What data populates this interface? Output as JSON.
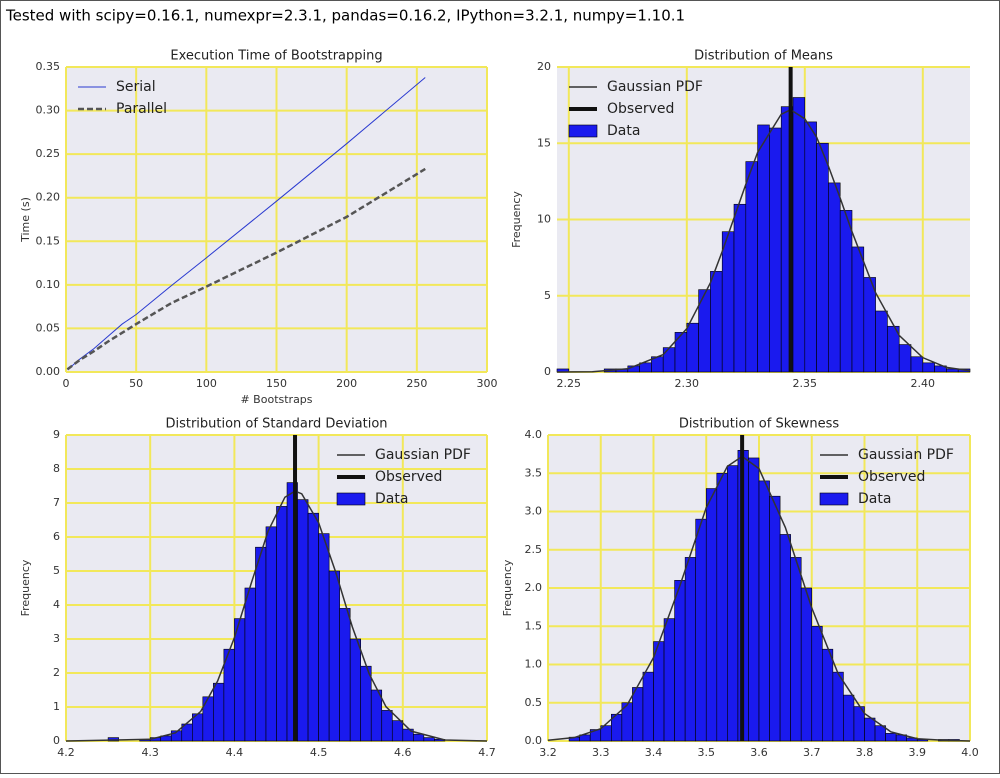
{
  "header": {
    "title": "Tested with scipy=0.16.1, numexpr=2.3.1, pandas=0.16.2, IPython=3.2.1, numpy=1.10.1"
  },
  "chart_data": [
    {
      "type": "line",
      "title": "Execution Time of Bootstrapping",
      "xlabel": "# Bootstraps",
      "ylabel": "Time (s)",
      "xlim": [
        0,
        300
      ],
      "xticks": [
        0,
        50,
        100,
        150,
        200,
        250,
        300
      ],
      "ylim": [
        0,
        0.35
      ],
      "yticks": [
        {
          "value": 0,
          "label": "0.00"
        },
        0.05,
        {
          "value": 0.1,
          "label": "0.10"
        },
        0.15,
        {
          "value": 0.2,
          "label": "0.20"
        },
        0.25,
        {
          "value": 0.3,
          "label": "0.30"
        },
        0.35
      ],
      "grid": true,
      "legend": "upper left",
      "x": [
        1,
        5,
        10,
        20,
        30,
        40,
        50,
        75,
        100,
        150,
        200,
        256
      ],
      "series": [
        {
          "name": "Serial",
          "color": "#2a3ad0",
          "width": 1,
          "dash": false,
          "values": [
            0.003,
            0.008,
            0.015,
            0.027,
            0.041,
            0.055,
            0.066,
            0.099,
            0.131,
            0.196,
            0.262,
            0.338
          ]
        },
        {
          "name": "Parallel",
          "color": "#555555",
          "width": 2.5,
          "dash": true,
          "values": [
            0.003,
            0.008,
            0.014,
            0.024,
            0.035,
            0.045,
            0.055,
            0.079,
            0.098,
            0.137,
            0.178,
            0.233
          ]
        }
      ]
    },
    {
      "type": "histogram",
      "title": "Distribution of Means",
      "ylabel": "Frequency",
      "xlim": [
        2.245,
        2.42
      ],
      "xticks": [
        2.25,
        {
          "value": 2.3,
          "label": "2.30"
        },
        2.35,
        {
          "value": 2.4,
          "label": "2.40"
        }
      ],
      "ylim": [
        0,
        20
      ],
      "yticks": [
        0,
        5,
        10,
        15,
        20
      ],
      "grid": true,
      "legend": "upper left",
      "series": [
        {
          "name": "Gaussian PDF",
          "kind": "line",
          "color": "#333333",
          "x": [
            2.245,
            2.26,
            2.275,
            2.29,
            2.3,
            2.31,
            2.315,
            2.32,
            2.325,
            2.33,
            2.34,
            2.344,
            2.35,
            2.355,
            2.36,
            2.365,
            2.37,
            2.38,
            2.39,
            2.4,
            2.41,
            2.42
          ],
          "values": [
            0,
            0.02,
            0.21,
            1.14,
            2.84,
            5.85,
            7.9,
            10.1,
            12.3,
            14.4,
            16.9,
            17.2,
            16.6,
            15.4,
            13.5,
            11.4,
            9.2,
            5.2,
            2.4,
            0.94,
            0.3,
            0.08
          ]
        },
        {
          "name": "Observed",
          "kind": "vline",
          "color": "#111111",
          "value": 2.344
        },
        {
          "name": "Data",
          "kind": "bar",
          "color": "#1a1aee",
          "bins": [
            2.245,
            2.25,
            2.255,
            2.26,
            2.265,
            2.27,
            2.275,
            2.28,
            2.285,
            2.29,
            2.295,
            2.3,
            2.305,
            2.31,
            2.315,
            2.32,
            2.325,
            2.33,
            2.335,
            2.34,
            2.345,
            2.35,
            2.355,
            2.36,
            2.365,
            2.37,
            2.375,
            2.38,
            2.385,
            2.39,
            2.395,
            2.4,
            2.405,
            2.41,
            2.415,
            2.42
          ],
          "values": [
            0.2,
            0,
            0,
            0,
            0.2,
            0.2,
            0.4,
            0.6,
            1.0,
            1.6,
            2.6,
            3.2,
            5.4,
            6.6,
            9.2,
            11.0,
            13.8,
            16.2,
            16.0,
            17.4,
            18.0,
            16.4,
            15.0,
            12.4,
            10.6,
            8.2,
            6.2,
            4.0,
            3.0,
            1.8,
            1.0,
            0.6,
            0.4,
            0.2,
            0.2
          ]
        }
      ]
    },
    {
      "type": "histogram",
      "title": "Distribution of Standard Deviation",
      "ylabel": "Frequency",
      "xlim": [
        4.2,
        4.7
      ],
      "xticks": [
        4.2,
        4.3,
        4.4,
        4.5,
        4.6,
        4.7
      ],
      "ylim": [
        0,
        9
      ],
      "yticks": [
        0,
        1,
        2,
        3,
        4,
        5,
        6,
        7,
        8,
        9
      ],
      "grid": true,
      "legend": "upper right",
      "series": [
        {
          "name": "Gaussian PDF",
          "kind": "line",
          "color": "#333333",
          "x": [
            4.2,
            4.3,
            4.33,
            4.36,
            4.38,
            4.4,
            4.42,
            4.44,
            4.46,
            4.472,
            4.48,
            4.5,
            4.52,
            4.54,
            4.56,
            4.58,
            4.61,
            4.65,
            4.7
          ],
          "values": [
            0,
            0.05,
            0.24,
            0.87,
            1.76,
            3.04,
            4.64,
            6.17,
            7.17,
            7.35,
            7.27,
            6.42,
            4.99,
            3.36,
            1.98,
            1.01,
            0.29,
            0.03,
            0
          ]
        },
        {
          "name": "Observed",
          "kind": "vline",
          "color": "#111111",
          "value": 4.472
        },
        {
          "name": "Data",
          "kind": "bar",
          "color": "#1a1aee",
          "bins": [
            4.25,
            4.2625,
            4.275,
            4.2875,
            4.3,
            4.3125,
            4.325,
            4.3375,
            4.35,
            4.3625,
            4.375,
            4.3875,
            4.4,
            4.4125,
            4.425,
            4.4375,
            4.45,
            4.4625,
            4.475,
            4.4875,
            4.5,
            4.5125,
            4.525,
            4.5375,
            4.55,
            4.5625,
            4.575,
            4.5875,
            4.6,
            4.6125,
            4.625,
            4.6375,
            4.65
          ],
          "values": [
            0.1,
            0,
            0,
            0.05,
            0.1,
            0.15,
            0.3,
            0.5,
            0.8,
            1.3,
            1.7,
            2.7,
            3.6,
            4.5,
            5.7,
            6.3,
            6.9,
            7.6,
            7.1,
            6.7,
            6.1,
            5.0,
            3.9,
            3.0,
            2.2,
            1.5,
            0.9,
            0.6,
            0.35,
            0.2,
            0.1,
            0.05
          ]
        }
      ]
    },
    {
      "type": "histogram",
      "title": "Distribution of Skewness",
      "ylabel": "Frequency",
      "xlim": [
        3.2,
        4.0
      ],
      "xticks": [
        3.2,
        3.3,
        3.4,
        3.5,
        3.6,
        3.7,
        3.8,
        3.9,
        {
          "value": 4,
          "label": "4.0"
        }
      ],
      "ylim": [
        0,
        4
      ],
      "yticks": [
        {
          "value": 0,
          "label": "0.0"
        },
        0.5,
        {
          "value": 1,
          "label": "1.0"
        },
        1.5,
        {
          "value": 2,
          "label": "2.0"
        },
        2.5,
        {
          "value": 3,
          "label": "3.0"
        },
        3.5,
        {
          "value": 4,
          "label": "4.0"
        }
      ],
      "grid": true,
      "legend": "upper right",
      "series": [
        {
          "name": "Gaussian PDF",
          "kind": "line",
          "color": "#333333",
          "x": [
            3.2,
            3.25,
            3.3,
            3.35,
            3.4,
            3.45,
            3.5,
            3.54,
            3.568,
            3.6,
            3.65,
            3.7,
            3.75,
            3.8,
            3.85,
            3.9,
            3.95,
            4.0
          ],
          "values": [
            0.01,
            0.045,
            0.16,
            0.47,
            1.09,
            2.03,
            3.05,
            3.59,
            3.72,
            3.56,
            2.79,
            1.74,
            0.88,
            0.36,
            0.12,
            0.03,
            0.01,
            0
          ]
        },
        {
          "name": "Observed",
          "kind": "vline",
          "color": "#111111",
          "value": 3.568
        },
        {
          "name": "Data",
          "kind": "bar",
          "color": "#1a1aee",
          "bins": [
            3.24,
            3.26,
            3.28,
            3.3,
            3.32,
            3.34,
            3.36,
            3.38,
            3.4,
            3.42,
            3.44,
            3.46,
            3.48,
            3.5,
            3.52,
            3.54,
            3.56,
            3.58,
            3.6,
            3.62,
            3.64,
            3.66,
            3.68,
            3.7,
            3.72,
            3.74,
            3.76,
            3.78,
            3.8,
            3.82,
            3.84,
            3.86,
            3.88,
            3.9,
            3.92,
            3.94,
            3.96,
            3.98
          ],
          "values": [
            0.05,
            0.08,
            0.15,
            0.2,
            0.35,
            0.5,
            0.7,
            0.9,
            1.3,
            1.6,
            2.1,
            2.4,
            2.9,
            3.3,
            3.5,
            3.6,
            3.8,
            3.7,
            3.4,
            3.2,
            2.7,
            2.4,
            2.0,
            1.5,
            1.2,
            0.9,
            0.6,
            0.45,
            0.3,
            0.2,
            0.1,
            0.08,
            0.04,
            0.02,
            0,
            0.02,
            0.02
          ]
        }
      ]
    }
  ]
}
